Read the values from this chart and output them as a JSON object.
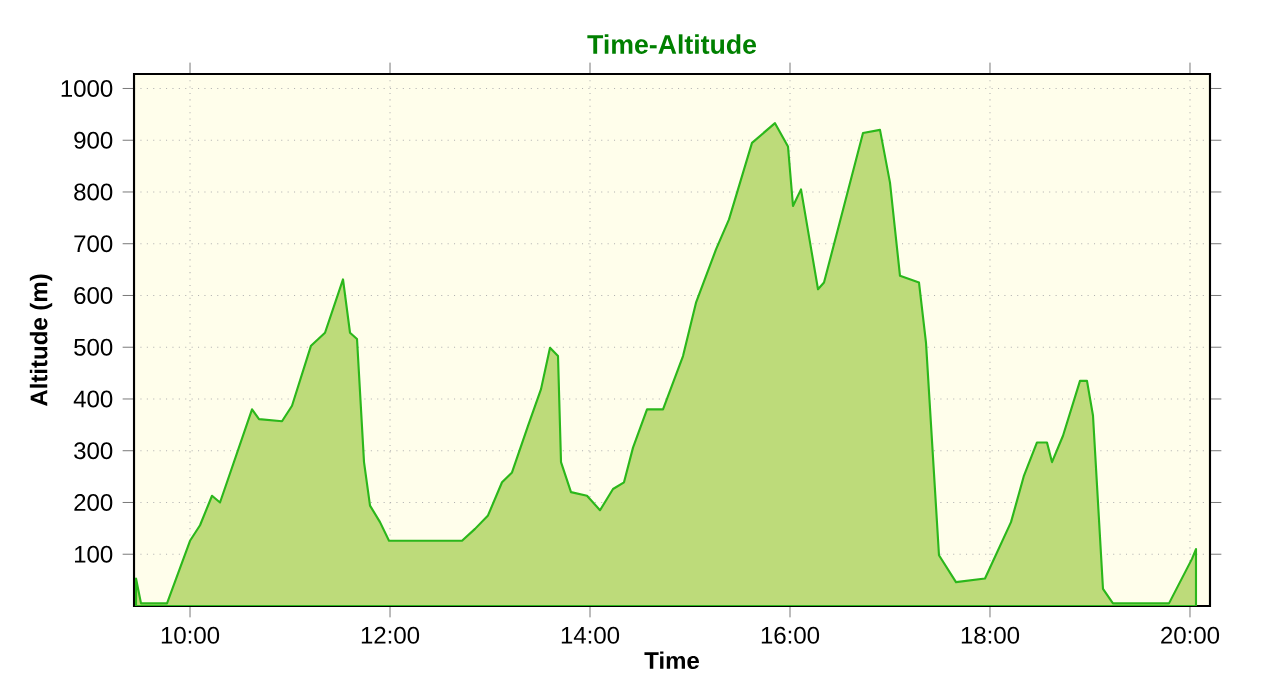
{
  "chart_data": {
    "type": "area",
    "title": "Time-Altitude",
    "xlabel": "Time",
    "ylabel": "Altitude (m)",
    "xlim": [
      9.44,
      20.2
    ],
    "ylim": [
      0,
      1028
    ],
    "xticks": [
      {
        "value": 10,
        "label": "10:00"
      },
      {
        "value": 12,
        "label": "12:00"
      },
      {
        "value": 14,
        "label": "14:00"
      },
      {
        "value": 16,
        "label": "16:00"
      },
      {
        "value": 18,
        "label": "18:00"
      },
      {
        "value": 20,
        "label": "20:00"
      }
    ],
    "yticks": [
      100,
      200,
      300,
      400,
      500,
      600,
      700,
      800,
      900,
      1000
    ],
    "grid": true,
    "series": [
      {
        "color": "#bddb7a",
        "x": [
          9.46,
          9.51,
          9.77,
          10.0,
          10.1,
          10.22,
          10.3,
          10.62,
          10.69,
          10.92,
          11.02,
          11.21,
          11.35,
          11.53,
          11.6,
          11.67,
          11.74,
          11.8,
          11.9,
          11.99,
          12.72,
          12.85,
          12.98,
          13.12,
          13.22,
          13.38,
          13.51,
          13.6,
          13.68,
          13.71,
          13.81,
          13.97,
          14.1,
          14.23,
          14.34,
          14.43,
          14.57,
          14.73,
          14.93,
          15.06,
          15.26,
          15.39,
          15.62,
          15.85,
          15.98,
          16.03,
          16.11,
          16.28,
          16.34,
          16.54,
          16.73,
          16.9,
          17.0,
          17.1,
          17.29,
          17.36,
          17.49,
          17.66,
          17.95,
          18.21,
          18.34,
          18.47,
          18.57,
          18.62,
          18.73,
          18.9,
          18.97,
          19.03,
          19.13,
          19.23,
          19.79,
          20.02,
          20.06
        ],
        "values": [
          53,
          5,
          5,
          126,
          156,
          213,
          200,
          380,
          361,
          357,
          387,
          503,
          528,
          631,
          528,
          516,
          278,
          194,
          162,
          126,
          126,
          149,
          175,
          239,
          258,
          348,
          419,
          499,
          483,
          278,
          220,
          213,
          185,
          226,
          239,
          306,
          380,
          380,
          483,
          586,
          689,
          747,
          895,
          933,
          888,
          773,
          805,
          612,
          625,
          773,
          914,
          920,
          818,
          638,
          625,
          509,
          98,
          46,
          53,
          162,
          252,
          316,
          316,
          278,
          329,
          435,
          435,
          368,
          33,
          5,
          5,
          91,
          110
        ]
      }
    ]
  }
}
